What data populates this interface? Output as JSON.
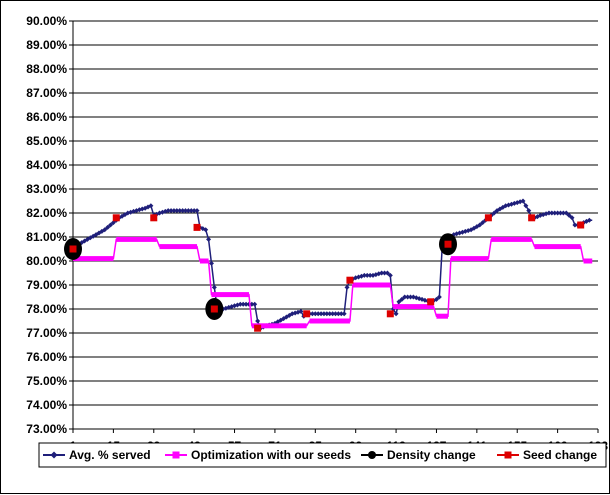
{
  "chart_data": {
    "type": "line",
    "title": "",
    "xlabel": "",
    "ylabel": "",
    "ylim": [
      73,
      90
    ],
    "xlim": [
      1,
      183
    ],
    "x_ticks": [
      1,
      15,
      29,
      43,
      57,
      71,
      85,
      99,
      113,
      127,
      141,
      155,
      169,
      183
    ],
    "x_tick_labels": [
      "1",
      "15",
      "29",
      "43",
      "57",
      "71",
      "85",
      "99",
      "113",
      "127",
      "141",
      "155",
      "169",
      "183"
    ],
    "y_ticks": [
      73,
      74,
      75,
      76,
      77,
      78,
      79,
      80,
      81,
      82,
      83,
      84,
      85,
      86,
      87,
      88,
      89,
      90
    ],
    "y_tick_labels": [
      "73.00%",
      "74.00%",
      "75.00%",
      "76.00%",
      "77.00%",
      "78.00%",
      "79.00%",
      "80.00%",
      "81.00%",
      "82.00%",
      "83.00%",
      "84.00%",
      "85.00%",
      "86.00%",
      "87.00%",
      "88.00%",
      "89.00%",
      "90.00%"
    ],
    "grid": "horizontal",
    "legend_position": "bottom",
    "series": [
      {
        "name": "Avg. % served",
        "color": "#1f1f7a",
        "marker": "diamond",
        "x": [
          1,
          3,
          6,
          9,
          12,
          15,
          17,
          20,
          23,
          26,
          28,
          29,
          31,
          34,
          37,
          40,
          42,
          44,
          45,
          47,
          48,
          49,
          50,
          51,
          53,
          56,
          59,
          62,
          64,
          65,
          66,
          68,
          71,
          74,
          77,
          80,
          81,
          82,
          84,
          87,
          90,
          93,
          95,
          96,
          97,
          99,
          102,
          105,
          108,
          110,
          111,
          112,
          113,
          114,
          116,
          119,
          122,
          125,
          127,
          128,
          129,
          130,
          131,
          133,
          136,
          139,
          142,
          144,
          145,
          146,
          148,
          151,
          154,
          157,
          159,
          160,
          161,
          163,
          166,
          169,
          172,
          174,
          175,
          176,
          178,
          180,
          181
        ],
        "y": [
          80.5,
          80.7,
          80.9,
          81.1,
          81.3,
          81.6,
          81.8,
          82.0,
          82.1,
          82.2,
          82.3,
          81.9,
          82.0,
          82.1,
          82.1,
          82.1,
          82.1,
          82.1,
          81.4,
          81.3,
          80.9,
          79.9,
          78.9,
          78.0,
          78.0,
          78.1,
          78.2,
          78.2,
          78.2,
          77.5,
          77.2,
          77.3,
          77.4,
          77.6,
          77.8,
          77.9,
          77.7,
          77.8,
          77.8,
          77.8,
          77.8,
          77.8,
          77.8,
          78.9,
          79.2,
          79.3,
          79.4,
          79.4,
          79.5,
          79.5,
          79.4,
          78.0,
          77.8,
          78.3,
          78.5,
          78.5,
          78.4,
          78.3,
          78.4,
          78.5,
          80.6,
          80.8,
          80.9,
          81.1,
          81.2,
          81.3,
          81.5,
          81.7,
          81.8,
          81.9,
          82.1,
          82.3,
          82.4,
          82.5,
          82.1,
          81.8,
          81.8,
          81.9,
          82.0,
          82.0,
          82.0,
          81.8,
          81.5,
          81.5,
          81.6,
          81.7,
          81.7
        ]
      },
      {
        "name": "Optimization with our seeds",
        "color": "#ff00ff",
        "marker": "square",
        "x": [
          1,
          15,
          16,
          30,
          31,
          44,
          45,
          48,
          49,
          62,
          63,
          82,
          83,
          97,
          98,
          111,
          112,
          126,
          127,
          131,
          132,
          145,
          146,
          160,
          161,
          177,
          178,
          181
        ],
        "y": [
          80.1,
          80.1,
          80.9,
          80.9,
          80.6,
          80.6,
          80.0,
          80.0,
          78.6,
          78.6,
          77.3,
          77.3,
          77.5,
          77.5,
          79.0,
          79.0,
          78.1,
          78.1,
          77.7,
          77.7,
          80.1,
          80.1,
          80.9,
          80.9,
          80.6,
          80.6,
          80.0,
          80.0
        ]
      },
      {
        "name": "Density change",
        "color": "#000000",
        "marker": "circle",
        "x": [
          1,
          50,
          131
        ],
        "y": [
          80.5,
          78.0,
          80.7
        ]
      },
      {
        "name": "Seed change",
        "color": "#dd0000",
        "marker": "square",
        "x": [
          1,
          16,
          29,
          44,
          50,
          65,
          82,
          97,
          111,
          125,
          131,
          145,
          160,
          177
        ],
        "y": [
          80.5,
          81.8,
          81.8,
          81.4,
          77.9,
          77.2,
          77.8,
          79.2,
          77.8,
          78.3,
          80.7,
          81.8,
          81.8,
          81.5
        ]
      }
    ]
  }
}
